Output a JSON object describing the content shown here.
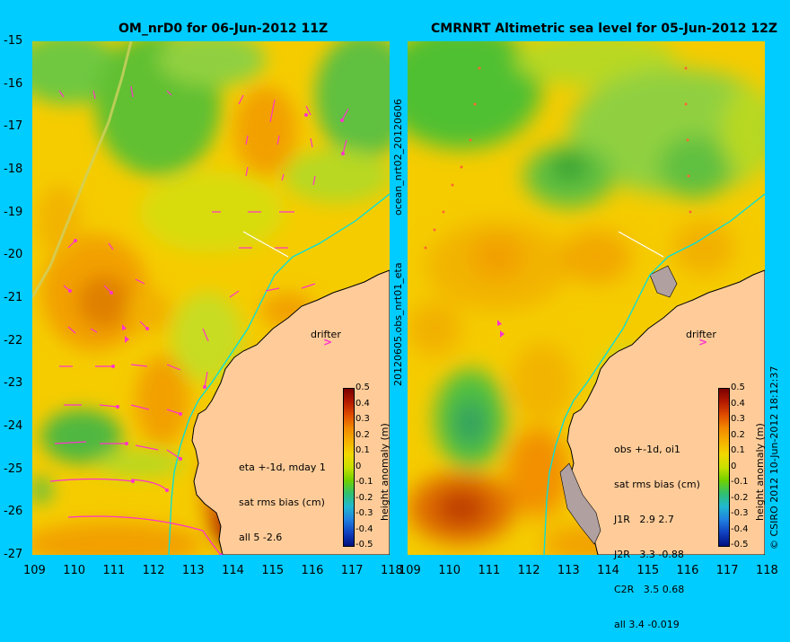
{
  "left_panel": {
    "title": "OM_nrD0 for 06-Jun-2012 11Z",
    "stats_lines": [
      "eta +-1d, mday 1",
      "sat rms bias (cm)",
      "all 5 -2.6"
    ],
    "drifter_label": "drifter",
    "x_ticks": [
      "109",
      "110",
      "111",
      "112",
      "113",
      "114",
      "115",
      "116",
      "117",
      "118"
    ],
    "y_ticks": [
      "-15",
      "-16",
      "-17",
      "-18",
      "-19",
      "-20",
      "-21",
      "-22",
      "-23",
      "-24",
      "-25",
      "-26",
      "-27"
    ]
  },
  "right_panel": {
    "title": "CMRNRT Altimetric sea level  for 05-Jun-2012 12Z",
    "stats_lines": [
      "obs +-1d, oi1",
      "sat rms bias (cm)",
      "J1R   2.9 2.7",
      "J2R   3.3 -0.88",
      "C2R   3.5 0.68",
      "all 3.4 -0.019"
    ],
    "drifter_label": "drifter",
    "x_ticks": [
      "109",
      "110",
      "111",
      "112",
      "113",
      "114",
      "115",
      "116",
      "117",
      "118"
    ]
  },
  "side_labels": {
    "middle": "20120605.obs_nrt01_eta",
    "middle_top": "ocean_nrt02_20120606",
    "right_edge": "© CSIRO 2012  10-Jun-2012 18:12:37"
  },
  "colorbar": {
    "title": "height anomaly (m)",
    "ticks": [
      "0.5",
      "0.4",
      "0.3",
      "0.2",
      "0.1",
      "0",
      "-0.1",
      "-0.2",
      "-0.3",
      "-0.4",
      "-0.5"
    ],
    "colors": [
      "#7a0000",
      "#b51a00",
      "#e04c00",
      "#f28800",
      "#f5b000",
      "#f2d800",
      "#c8e000",
      "#70d000",
      "#30c070",
      "#20b8d0",
      "#2080e0",
      "#1040c0",
      "#001080"
    ]
  },
  "colors": {
    "background": "#00ccff",
    "land": "#ffcc99",
    "drifter_marker": "#ff33cc",
    "track": "#00e0e0"
  }
}
